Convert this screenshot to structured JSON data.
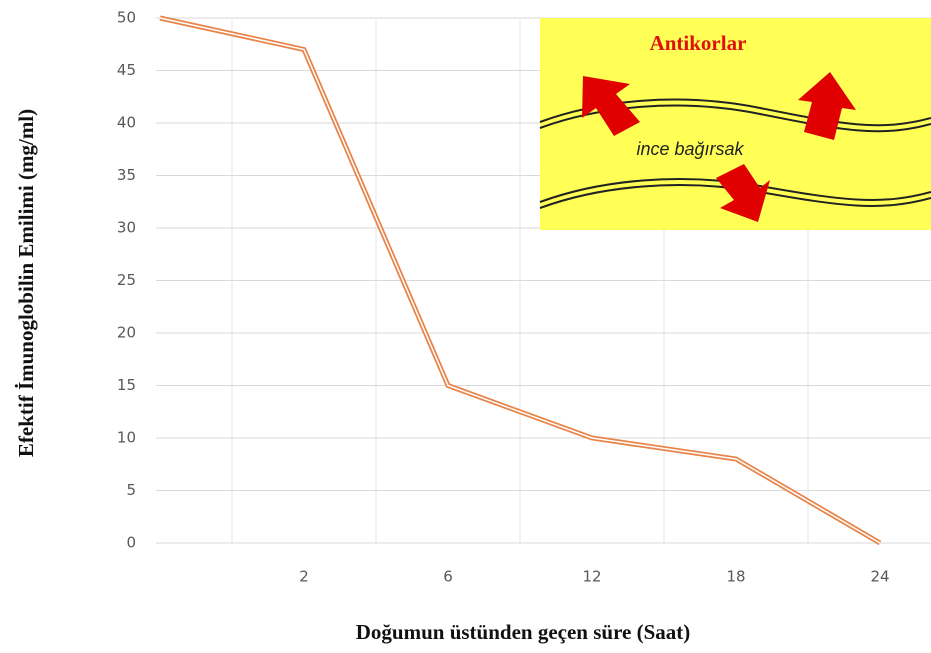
{
  "chart_data": {
    "type": "line",
    "x_label": "Doğumun üstünden geçen süre (Saat)",
    "y_label": "Efektif İmunoglobilin Emilimi (mg/ml)",
    "categories": [
      null,
      "2",
      "6",
      "12",
      "18",
      "24"
    ],
    "series": [
      {
        "color": "#e8844a",
        "values": [
          50,
          47,
          15,
          10,
          8,
          0
        ]
      }
    ],
    "ylim": [
      0,
      50
    ],
    "yticks": [
      0,
      5,
      10,
      15,
      20,
      25,
      30,
      35,
      40,
      45,
      50
    ],
    "grid": true,
    "annotations": [
      "Antikorlar",
      "ince bağırsak"
    ]
  }
}
